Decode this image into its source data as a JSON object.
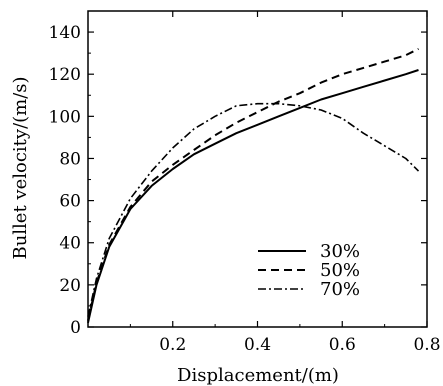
{
  "chart_data": {
    "type": "line",
    "title": "",
    "xlabel": "Displacement/(m)",
    "ylabel": "Bullet velocity/(m/s)",
    "xlim": [
      0,
      0.8
    ],
    "ylim": [
      0,
      150
    ],
    "xticks": [
      0.2,
      0.4,
      0.6,
      0.8
    ],
    "xtick_labels": [
      "0.2",
      "0.4",
      "0.6",
      "0.8"
    ],
    "yticks": [
      0,
      20,
      40,
      60,
      80,
      100,
      120,
      140
    ],
    "ytick_labels": [
      "0",
      "20",
      "40",
      "60",
      "80",
      "100",
      "120",
      "140"
    ],
    "grid": false,
    "legend_position": "lower-right",
    "series": [
      {
        "name": "30%",
        "line_style": "solid",
        "x": [
          0.0,
          0.02,
          0.05,
          0.1,
          0.15,
          0.2,
          0.25,
          0.3,
          0.35,
          0.4,
          0.45,
          0.5,
          0.55,
          0.6,
          0.65,
          0.7,
          0.75,
          0.78
        ],
        "y": [
          2,
          20,
          38,
          56,
          67,
          75,
          82,
          87,
          92,
          96,
          100,
          104,
          108,
          111,
          114,
          117,
          120,
          122
        ]
      },
      {
        "name": "50%",
        "line_style": "dashed",
        "x": [
          0.0,
          0.02,
          0.05,
          0.1,
          0.15,
          0.2,
          0.25,
          0.3,
          0.35,
          0.4,
          0.45,
          0.5,
          0.55,
          0.6,
          0.65,
          0.7,
          0.75,
          0.78
        ],
        "y": [
          3,
          21,
          39,
          57,
          69,
          77,
          84,
          91,
          97,
          102,
          107,
          111,
          116,
          120,
          123,
          126,
          129,
          132
        ]
      },
      {
        "name": "70%",
        "line_style": "dash-dot",
        "x": [
          0.0,
          0.02,
          0.05,
          0.1,
          0.15,
          0.2,
          0.25,
          0.3,
          0.35,
          0.4,
          0.45,
          0.5,
          0.55,
          0.6,
          0.65,
          0.7,
          0.75,
          0.78
        ],
        "y": [
          5,
          23,
          42,
          61,
          74,
          85,
          94,
          100,
          105,
          106,
          106,
          105,
          103,
          99,
          92,
          86,
          80,
          74
        ]
      }
    ]
  }
}
